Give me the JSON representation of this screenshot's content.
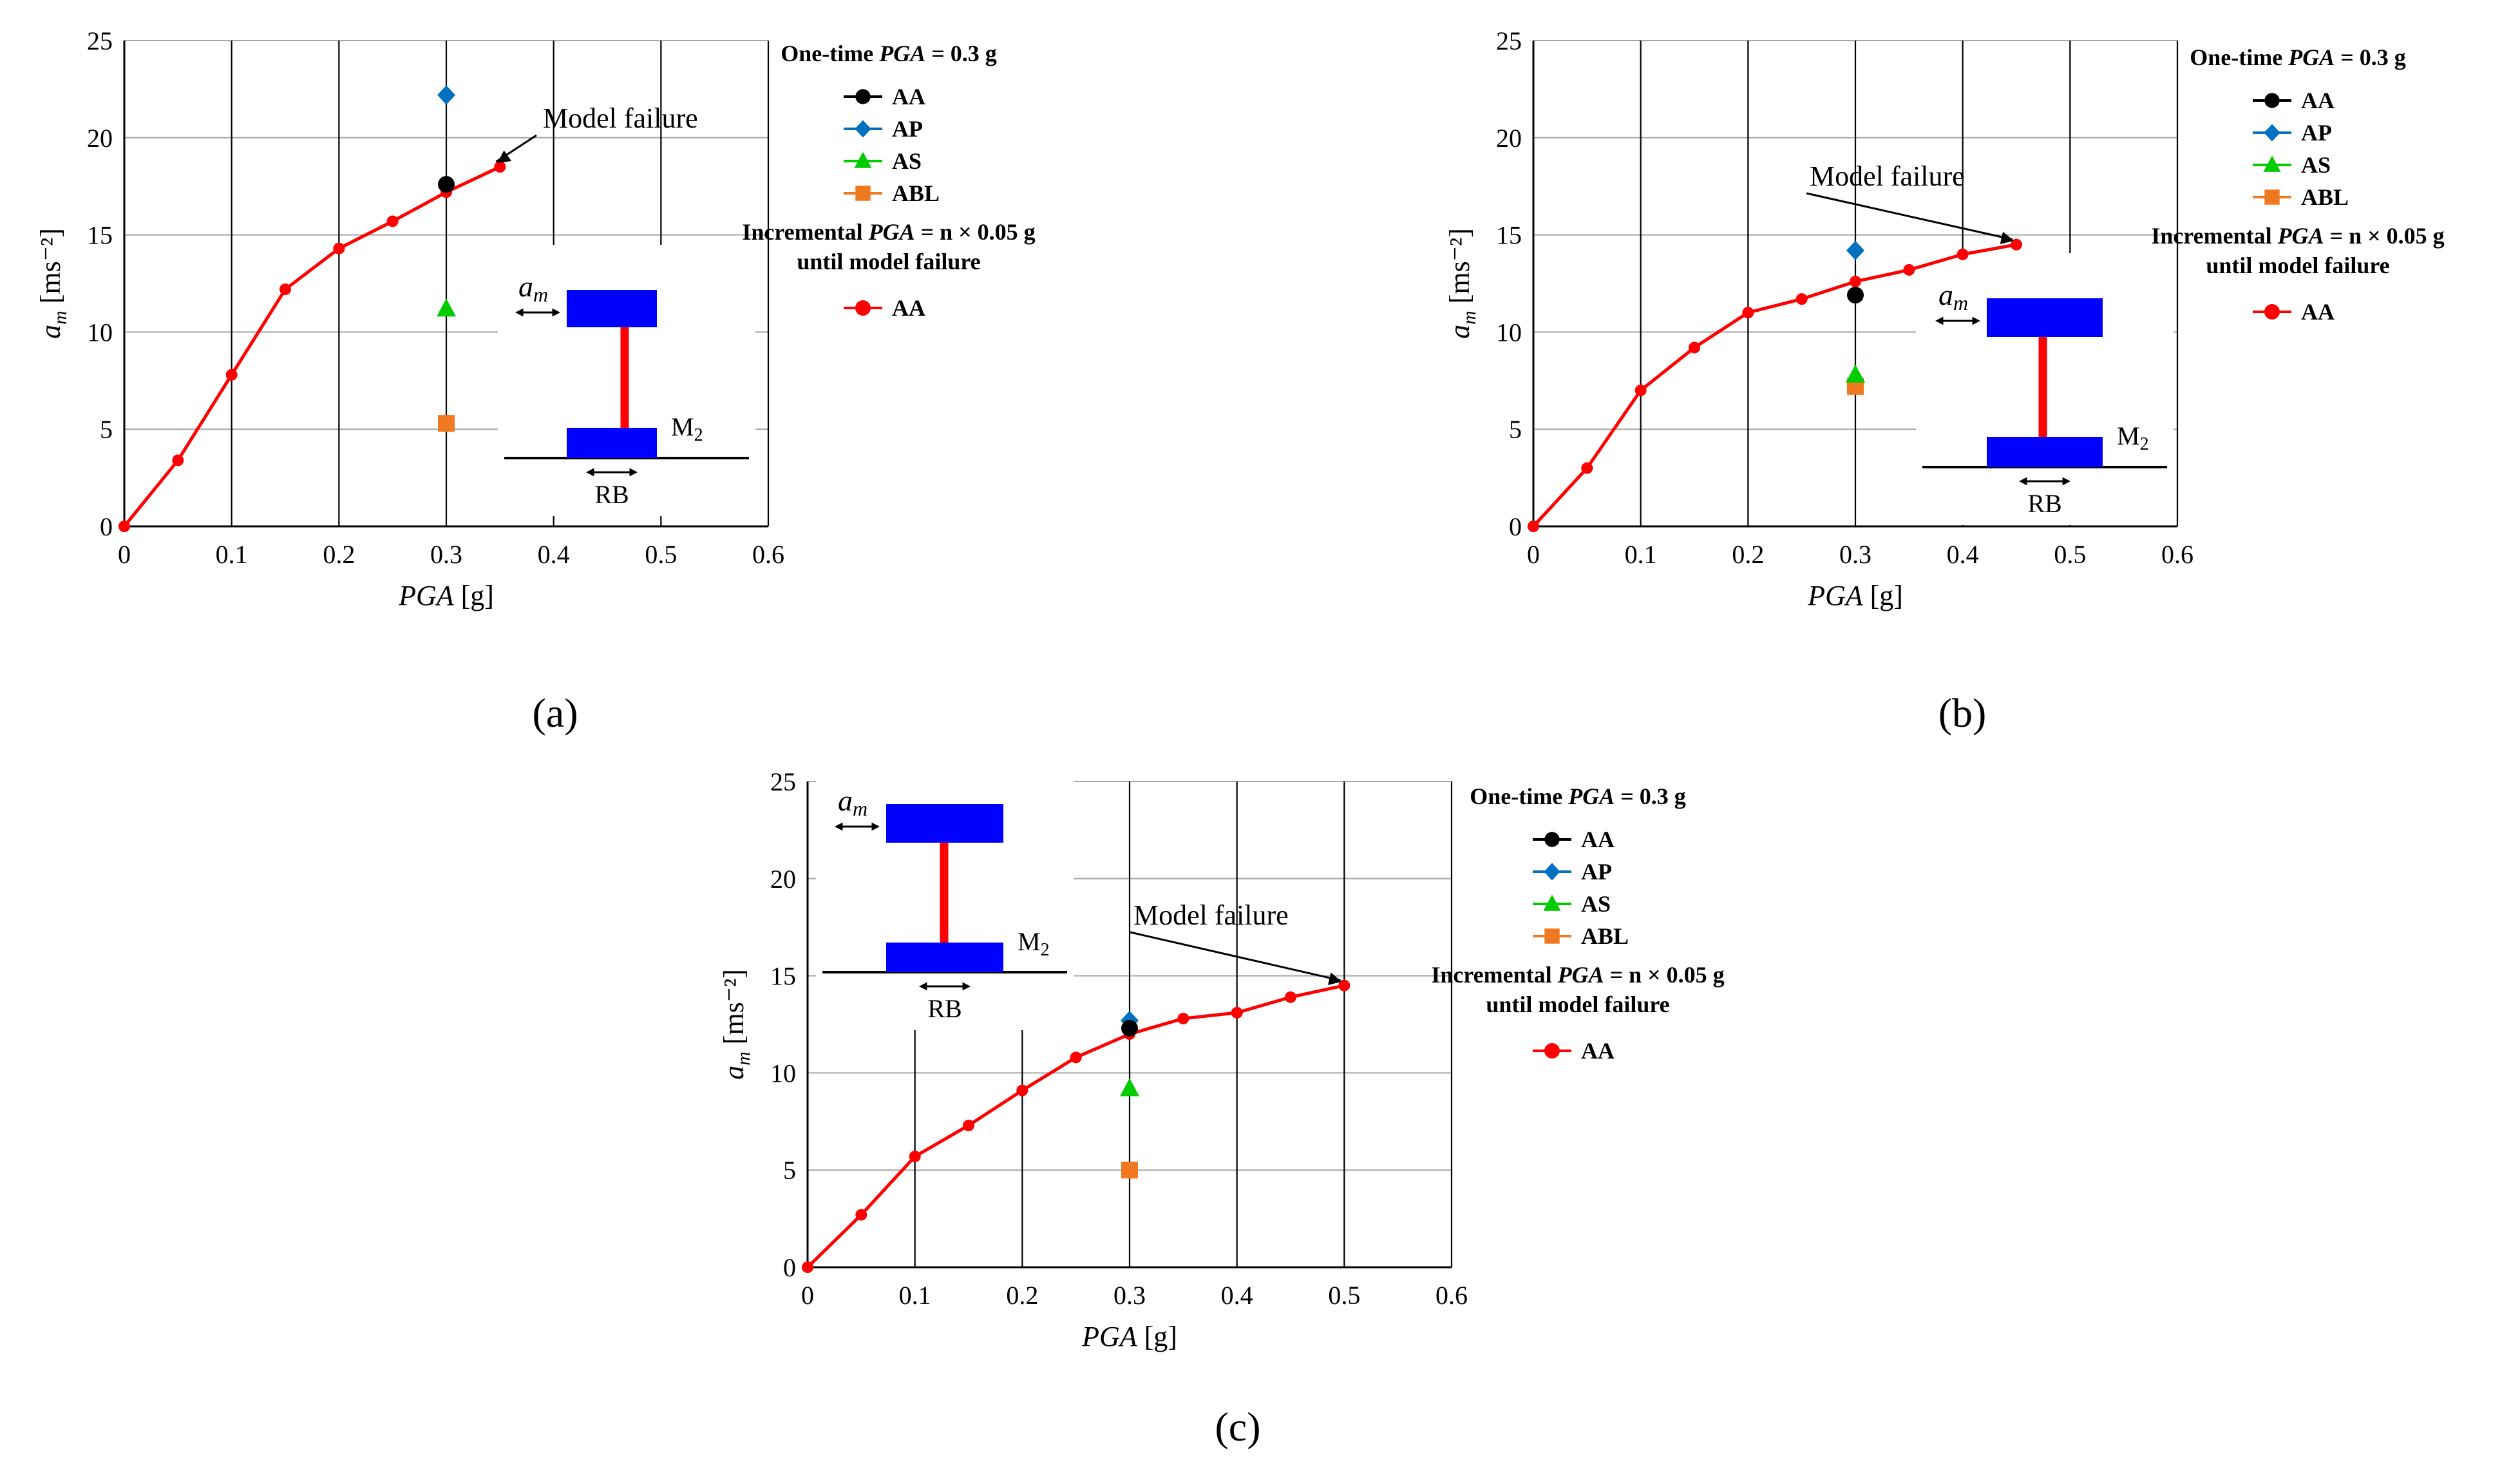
{
  "colors": {
    "incremental_AA": "#ff0000",
    "AA": "#000000",
    "AP": "#0070c0",
    "AS": "#00cc00",
    "ABL": "#f07820",
    "inset_block": "#0000ff",
    "inset_column": "#ff0000"
  },
  "legend": {
    "onetime_prefix": "One-time ",
    "onetime_var": "PGA",
    "onetime_suffix": " = 0.3 g",
    "incr_prefix": "Incremental ",
    "incr_var": "PGA",
    "incr_suffix": " = n × 0.05 g",
    "incr_line2": "until model failure",
    "items": [
      "AA",
      "AP",
      "AS",
      "ABL"
    ],
    "incr_item": "AA"
  },
  "inset": {
    "am": "a",
    "am_sub": "m",
    "mass": "M",
    "mass_sub": "2",
    "base": "RB"
  },
  "annotation": "Model failure",
  "chart_data": [
    {
      "type": "line",
      "panel_label": "(a)",
      "xlabel_var": "PGA",
      "xlabel_unit": " [g]",
      "ylabel_var": "a",
      "ylabel_sub": "m",
      "ylabel_unit": " [ms⁻²]",
      "xlim": [
        0,
        0.6
      ],
      "ylim": [
        0,
        25
      ],
      "xticks": [
        "0",
        "0.1",
        "0.2",
        "0.3",
        "0.4",
        "0.5",
        "0.6"
      ],
      "yticks": [
        "0",
        "5",
        "10",
        "15",
        "20",
        "25"
      ],
      "series": [
        {
          "name": "Incremental AA",
          "x": [
            0,
            0.05,
            0.1,
            0.15,
            0.2,
            0.25,
            0.3,
            0.35
          ],
          "y": [
            0,
            3.4,
            7.8,
            12.2,
            14.3,
            15.7,
            17.2,
            18.5
          ]
        }
      ],
      "onetime": {
        "x": 0.3,
        "AA": 17.6,
        "AP": 22.2,
        "AS": 11.2,
        "ABL": 5.3
      },
      "failure": {
        "x": 0.35,
        "y": 18.5
      }
    },
    {
      "type": "line",
      "panel_label": "(b)",
      "xlabel_var": "PGA",
      "xlabel_unit": " [g]",
      "ylabel_var": "a",
      "ylabel_sub": "m",
      "ylabel_unit": " [ms⁻²]",
      "xlim": [
        0,
        0.6
      ],
      "ylim": [
        0,
        25
      ],
      "xticks": [
        "0",
        "0.1",
        "0.2",
        "0.3",
        "0.4",
        "0.5",
        "0.6"
      ],
      "yticks": [
        "0",
        "5",
        "10",
        "15",
        "20",
        "25"
      ],
      "series": [
        {
          "name": "Incremental AA",
          "x": [
            0,
            0.05,
            0.1,
            0.15,
            0.2,
            0.25,
            0.3,
            0.35,
            0.4,
            0.45
          ],
          "y": [
            0,
            3.0,
            7.0,
            9.2,
            11.0,
            11.7,
            12.6,
            13.2,
            14.0,
            14.5
          ]
        }
      ],
      "onetime": {
        "x": 0.3,
        "AA": 11.9,
        "AP": 14.2,
        "AS": 7.8,
        "ABL": 7.2
      },
      "failure": {
        "x": 0.45,
        "y": 14.5
      }
    },
    {
      "type": "line",
      "panel_label": "(c)",
      "xlabel_var": "PGA",
      "xlabel_unit": " [g]",
      "ylabel_var": "a",
      "ylabel_sub": "m",
      "ylabel_unit": " [ms⁻²]",
      "xlim": [
        0,
        0.6
      ],
      "ylim": [
        0,
        25
      ],
      "xticks": [
        "0",
        "0.1",
        "0.2",
        "0.3",
        "0.4",
        "0.5",
        "0.6"
      ],
      "yticks": [
        "0",
        "5",
        "10",
        "15",
        "20",
        "25"
      ],
      "series": [
        {
          "name": "Incremental AA",
          "x": [
            0,
            0.05,
            0.1,
            0.15,
            0.2,
            0.25,
            0.3,
            0.35,
            0.4,
            0.45,
            0.5
          ],
          "y": [
            0,
            2.7,
            5.7,
            7.3,
            9.1,
            10.8,
            12.0,
            12.8,
            13.1,
            13.9,
            14.5
          ]
        }
      ],
      "onetime": {
        "x": 0.3,
        "AA": 12.3,
        "AP": 12.7,
        "AS": 9.2,
        "ABL": 5.0
      },
      "failure": {
        "x": 0.5,
        "y": 14.5
      }
    }
  ]
}
